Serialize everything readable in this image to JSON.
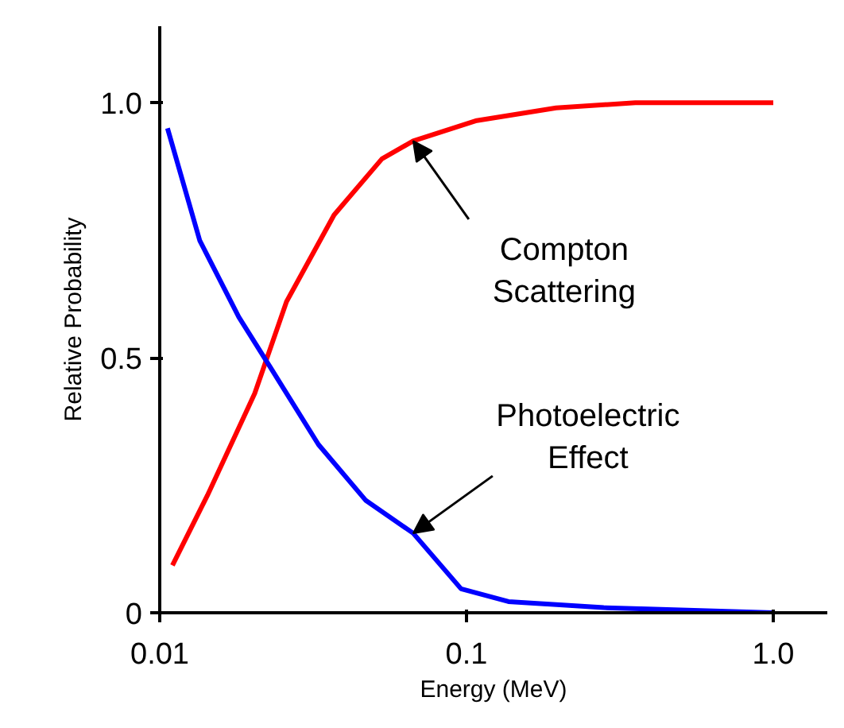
{
  "chart_data": {
    "type": "line",
    "xlabel": "Energy (MeV)",
    "ylabel": "Relative Probability",
    "log": "x",
    "grid": false,
    "marker": "none",
    "line_style": "solid",
    "xlim": [
      0.01,
      1.5
    ],
    "ylim": [
      0,
      1.15
    ],
    "xticks": [
      {
        "value": 0.01,
        "label": "0.01"
      },
      {
        "value": 0.1,
        "label": "0.1"
      },
      {
        "value": 1,
        "label": "1.0"
      }
    ],
    "yticks": [
      {
        "value": 0,
        "label": "0"
      },
      {
        "value": 0.5,
        "label": "0.5"
      },
      {
        "value": 1,
        "label": "1.0"
      }
    ],
    "series": [
      {
        "color": "#ff0000",
        "x": [
          0.011,
          0.0143,
          0.0204,
          0.0259,
          0.037,
          0.053,
          0.067,
          0.108,
          0.196,
          0.355,
          0.644,
          1.0
        ],
        "values": [
          0.093,
          0.23,
          0.43,
          0.61,
          0.78,
          0.89,
          0.925,
          0.965,
          0.99,
          1.0,
          1.0,
          1.0
        ]
      },
      {
        "color": "#0000ff",
        "x": [
          0.0106,
          0.0135,
          0.0181,
          0.023,
          0.0329,
          0.047,
          0.067,
          0.096,
          0.137,
          0.28,
          1.0
        ],
        "values": [
          0.95,
          0.73,
          0.58,
          0.48,
          0.33,
          0.22,
          0.156,
          0.047,
          0.022,
          0.01,
          0.0
        ]
      }
    ],
    "annotations": [
      {
        "text": "Compton\nScattering",
        "x": 0.067,
        "y": 0.925
      },
      {
        "text": "Photoelectric\nEffect",
        "x": 0.067,
        "y": 0.156
      }
    ]
  }
}
